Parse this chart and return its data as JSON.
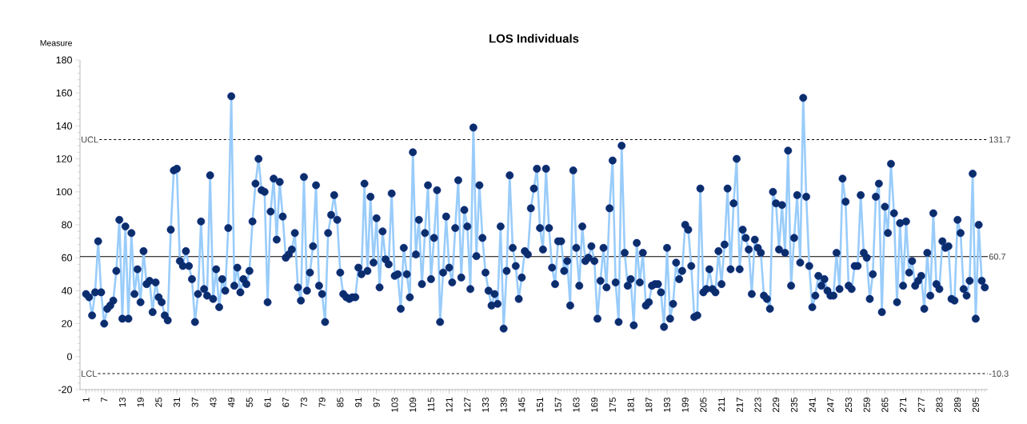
{
  "chart_data": {
    "type": "line",
    "title": "LOS Individuals",
    "ylabel": "Measure",
    "categories": [
      "1",
      null,
      null,
      null,
      null,
      null,
      "7",
      null,
      null,
      null,
      null,
      null,
      "13",
      null,
      null,
      null,
      null,
      null,
      "19",
      null,
      null,
      null,
      null,
      null,
      "25",
      null,
      null,
      null,
      null,
      null,
      "31",
      null,
      null,
      null,
      null,
      null,
      "37",
      null,
      null,
      null,
      null,
      null,
      "43",
      null,
      null,
      null,
      null,
      null,
      "49",
      null,
      null,
      null,
      null,
      null,
      "55",
      null,
      null,
      null,
      null,
      null,
      "61",
      null,
      null,
      null,
      null,
      null,
      "67",
      null,
      null,
      null,
      null,
      null,
      "73",
      null,
      null,
      null,
      null,
      null,
      "79",
      null,
      null,
      null,
      null,
      null,
      "85",
      null,
      null,
      null,
      null,
      null,
      "91",
      null,
      null,
      null,
      null,
      null,
      "97",
      null,
      null,
      null,
      null,
      null,
      "103",
      null,
      null,
      null,
      null,
      null,
      "109",
      null,
      null,
      null,
      null,
      null,
      "115",
      null,
      null,
      null,
      null,
      null,
      "121",
      null,
      null,
      null,
      null,
      null,
      "127",
      null,
      null,
      null,
      null,
      null,
      "133",
      null,
      null,
      null,
      null,
      null,
      "139",
      null,
      null,
      null,
      null,
      null,
      "145",
      null,
      null,
      null,
      null,
      null,
      "151",
      null,
      null,
      null,
      null,
      null,
      "157",
      null,
      null,
      null,
      null,
      null,
      "163",
      null,
      null,
      null,
      null,
      null,
      "169",
      null,
      null,
      null,
      null,
      null,
      "175",
      null,
      null,
      null,
      null,
      null,
      "181",
      null,
      null,
      null,
      null,
      null,
      "187",
      null,
      null,
      null,
      null,
      null,
      "193",
      null,
      null,
      null,
      null,
      null,
      "199",
      null,
      null,
      null,
      null,
      null,
      "205",
      null,
      null,
      null,
      null,
      null,
      "211",
      null,
      null,
      null,
      null,
      null,
      "217",
      null,
      null,
      null,
      null,
      null,
      "223",
      null,
      null,
      null,
      null,
      null,
      "229",
      null,
      null,
      null,
      null,
      null,
      "235",
      null,
      null,
      null,
      null,
      null,
      "241",
      null,
      null,
      null,
      null,
      null,
      "247",
      null,
      null,
      null,
      null,
      null,
      "253",
      null,
      null,
      null,
      null,
      null,
      "259",
      null,
      null,
      null,
      null,
      null,
      "265",
      null,
      null,
      null,
      null,
      null,
      "271",
      null,
      null,
      null,
      null,
      null,
      "277",
      null,
      null,
      null,
      null,
      null,
      "283",
      null,
      null,
      null,
      null,
      null,
      "289",
      null,
      null,
      null,
      null,
      null,
      "295",
      null,
      null,
      null
    ],
    "annotations": [
      "131.7",
      "60.7",
      "-10.3"
    ],
    "series": [
      {
        "color": "#0b2e6b",
        "values": [
          38,
          36,
          25,
          39,
          70,
          39,
          20,
          29,
          31,
          34,
          52,
          83,
          23,
          79,
          23,
          75,
          38,
          53,
          33,
          64,
          44,
          46,
          27,
          45,
          36,
          33,
          25,
          22,
          77,
          113,
          114,
          58,
          55,
          64,
          55,
          47,
          21,
          38,
          82,
          41,
          37,
          110,
          35,
          53,
          30,
          47,
          40,
          78,
          158,
          43,
          54,
          39,
          47,
          44,
          52,
          82,
          105,
          120,
          101,
          100,
          33,
          88,
          108,
          71,
          106,
          85,
          60,
          62,
          65,
          75,
          42,
          34,
          109,
          40,
          51,
          67,
          104,
          43,
          38,
          21,
          75,
          86,
          98,
          83,
          51,
          38,
          36,
          35,
          36,
          36,
          54,
          50,
          105,
          52,
          97,
          57,
          84,
          42,
          76,
          59,
          56,
          99,
          49,
          50,
          29,
          66,
          50,
          36,
          124,
          62,
          83,
          44,
          75,
          104,
          47,
          72,
          101,
          21,
          51,
          85,
          54,
          45,
          78,
          107,
          48,
          89,
          79,
          41,
          139,
          61,
          104,
          72,
          51,
          40,
          31,
          38,
          32,
          79,
          17,
          52,
          110,
          66,
          55,
          35,
          48,
          64,
          62,
          90,
          102,
          114,
          78,
          65,
          114,
          78,
          54,
          44,
          70,
          70,
          52,
          58,
          31,
          113,
          66,
          43,
          79,
          58,
          60,
          67,
          58,
          23,
          46,
          66,
          42,
          90,
          119,
          45,
          21,
          128,
          63,
          43,
          47,
          19,
          69,
          45,
          63,
          31,
          33,
          43,
          44,
          44,
          39,
          18,
          66,
          23,
          32,
          57,
          47,
          52,
          80,
          77,
          55,
          24,
          25,
          102,
          39,
          41,
          53,
          41,
          39,
          64,
          44,
          68,
          102,
          53,
          93,
          120,
          53,
          77,
          72,
          65,
          38,
          71,
          66,
          63,
          37,
          35,
          29,
          100,
          93,
          65,
          92,
          63,
          125,
          43,
          72,
          98,
          57,
          157,
          97,
          55,
          30,
          37,
          49,
          43,
          47,
          40,
          37,
          37,
          63,
          41,
          108,
          94,
          43,
          41,
          55,
          55,
          98,
          63,
          60,
          35,
          50,
          97,
          105,
          27,
          91,
          75,
          117,
          87,
          33,
          81,
          43,
          82,
          51,
          58,
          43,
          46,
          49,
          29,
          63,
          37,
          87,
          44,
          41,
          70,
          66,
          67,
          35,
          34,
          83,
          75,
          41,
          37,
          46,
          111,
          23,
          80,
          46,
          42
        ]
      }
    ],
    "ylim": [
      -20,
      180
    ],
    "yticks": [
      -20,
      0,
      20,
      40,
      60,
      80,
      100,
      120,
      140,
      160,
      180
    ],
    "grid": false,
    "marker": "circle",
    "line_style": "solid",
    "ref_lines": [
      {
        "axis": "y",
        "value": 131.7,
        "label": "UCL",
        "line_style": "dashed",
        "color": "#000000"
      },
      {
        "axis": "y",
        "value": 60.7,
        "line_style": "solid",
        "color": "#000000"
      },
      {
        "axis": "y",
        "value": -10.3,
        "label": "LCL",
        "line_style": "dashed",
        "color": "#000000"
      }
    ]
  }
}
